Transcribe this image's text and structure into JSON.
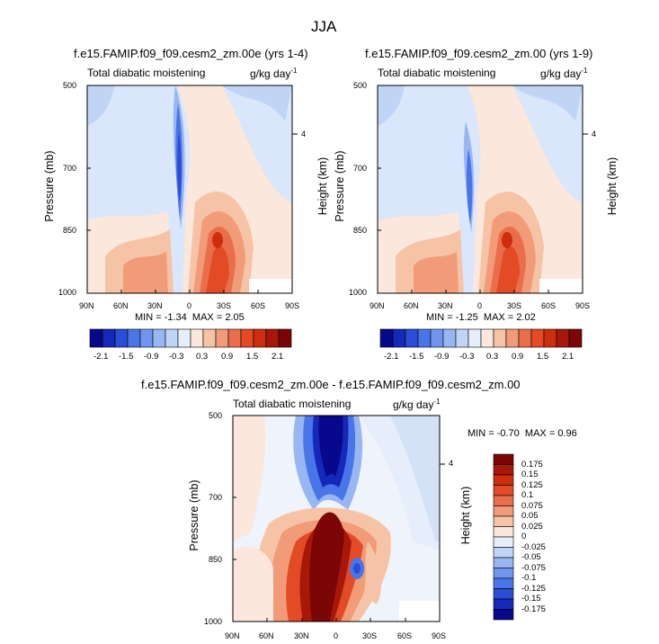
{
  "figure_title": "JJA",
  "chart_data": [
    {
      "type": "heatmap",
      "title": "f.e15.FAMIP.f09_f09.cesm2_zm.00e (yrs 1-4)",
      "left_label": "Total diabatic moistening",
      "units_base": "g/kg day",
      "units_exp": "-1",
      "ylabel": "Pressure (mb)",
      "ylabel_right": "Height (km)",
      "yticks": [
        "500",
        "700",
        "850",
        "1000"
      ],
      "yticks_right": [
        "4"
      ],
      "xticks": [
        "90N",
        "60N",
        "30N",
        "0",
        "30S",
        "60S",
        "90S"
      ],
      "min_label": "MIN =",
      "min": "-1.34",
      "max_label": "MAX =",
      "max": "2.05"
    },
    {
      "type": "heatmap",
      "title": "f.e15.FAMIP.f09_f09.cesm2_zm.00 (yrs 1-9)",
      "left_label": "Total diabatic moistening",
      "units_base": "g/kg day",
      "units_exp": "-1",
      "ylabel": "Pressure (mb)",
      "ylabel_right": "Height (km)",
      "yticks": [
        "500",
        "700",
        "850",
        "1000"
      ],
      "yticks_right": [
        "4"
      ],
      "xticks": [
        "90N",
        "60N",
        "30N",
        "0",
        "30S",
        "60S",
        "90S"
      ],
      "min_label": "MIN =",
      "min": "-1.25",
      "max_label": "MAX =",
      "max": "2.02"
    },
    {
      "type": "heatmap",
      "title": "f.e15.FAMIP.f09_f09.cesm2_zm.00e - f.e15.FAMIP.f09_f09.cesm2_zm.00",
      "left_label": "Total diabatic moistening",
      "units_base": "g/kg day",
      "units_exp": "-1",
      "ylabel": "Pressure (mb)",
      "ylabel_right": "Height (km)",
      "yticks": [
        "500",
        "700",
        "850",
        "1000"
      ],
      "yticks_right": [
        "4"
      ],
      "xticks": [
        "90N",
        "60N",
        "30N",
        "0",
        "30S",
        "60S",
        "90S"
      ],
      "min_label": "MIN =",
      "min": "-0.70",
      "max_label": "MAX =",
      "max": "0.96"
    }
  ],
  "colorbar_main": {
    "labels": [
      "-2.1",
      "-1.5",
      "-0.9",
      "-0.3",
      "0.3",
      "0.9",
      "1.5",
      "2.1"
    ],
    "colors": [
      "#08088c",
      "#1528b8",
      "#2a4ed6",
      "#4a75e8",
      "#7195ee",
      "#98b6f2",
      "#c0d4f6",
      "#e6eefb",
      "#fbe7dc",
      "#f6c3a6",
      "#f19b78",
      "#ea6e4c",
      "#e34a26",
      "#cc2e0e",
      "#a8180a",
      "#7c0505"
    ]
  },
  "colorbar_diff": {
    "labels": [
      "0.175",
      "0.15",
      "0.125",
      "0.1",
      "0.075",
      "0.05",
      "0.025",
      "0",
      "-0.025",
      "-0.05",
      "-0.075",
      "-0.1",
      "-0.125",
      "-0.15",
      "-0.175"
    ],
    "colors": [
      "#7c0505",
      "#a8180a",
      "#cc2e0e",
      "#e34a26",
      "#ea6e4c",
      "#f19b78",
      "#f6c3a6",
      "#fbe7dc",
      "#e6eefb",
      "#c0d4f6",
      "#98b6f2",
      "#7195ee",
      "#4a75e8",
      "#2a4ed6",
      "#1528b8",
      "#08088c"
    ]
  }
}
